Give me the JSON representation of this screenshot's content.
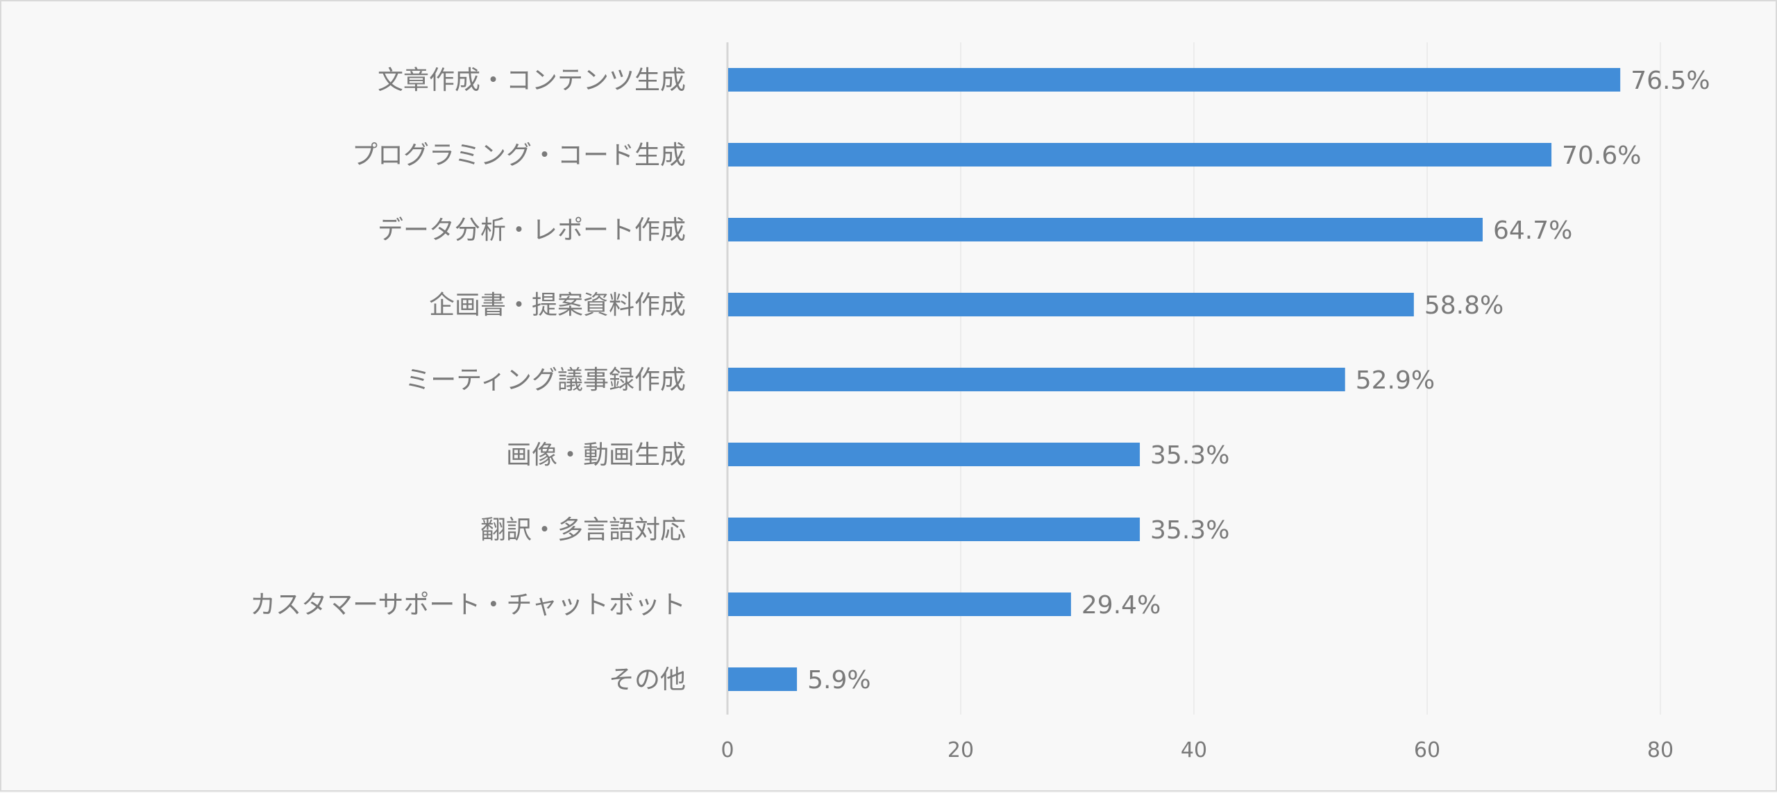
{
  "chart_data": {
    "type": "bar",
    "orientation": "horizontal",
    "categories": [
      "文章作成・コンテンツ生成",
      "プログラミング・コード生成",
      "データ分析・レポート作成",
      "企画書・提案資料作成",
      "ミーティング議事録作成",
      "画像・動画生成",
      "翻訳・多言語対応",
      "カスタマーサポート・チャットボット",
      "その他"
    ],
    "values": [
      76.5,
      70.6,
      64.7,
      58.8,
      52.9,
      35.3,
      35.3,
      29.4,
      5.9
    ],
    "data_labels": [
      "76.5%",
      "70.6%",
      "64.7%",
      "58.8%",
      "52.9%",
      "35.3%",
      "35.3%",
      "29.4%",
      "5.9%"
    ],
    "title": "",
    "xlabel": "",
    "ylabel": "",
    "xlim": [
      0,
      80
    ],
    "xticks": [
      "0",
      "20",
      "40",
      "60",
      "80"
    ],
    "grid": "vertical",
    "legend": "none",
    "bar_color": "#428dd8"
  }
}
